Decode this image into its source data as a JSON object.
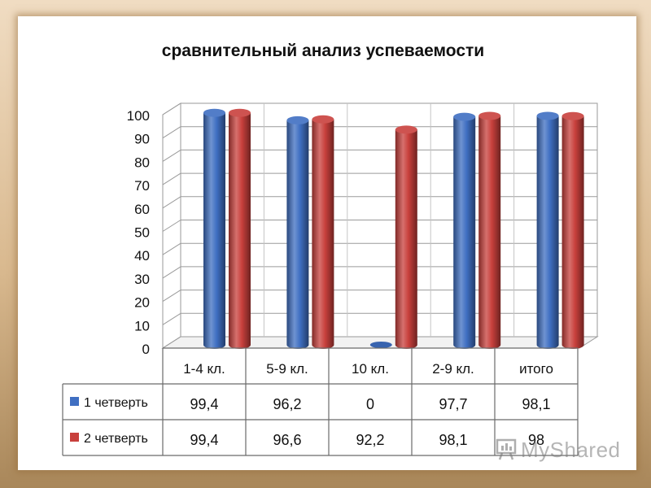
{
  "chart_data": {
    "type": "bar",
    "title": "сравнительный анализ успеваемости",
    "categories": [
      "1-4 кл.",
      "5-9 кл.",
      "10 кл.",
      "2-9 кл.",
      "итого"
    ],
    "series": [
      {
        "name": "1 четверть",
        "color": "#3f6fc2",
        "values": [
          99.4,
          96.2,
          0,
          97.7,
          98.1
        ],
        "labels": [
          "99,4",
          "96,2",
          "0",
          "97,7",
          "98,1"
        ]
      },
      {
        "name": "2 четверть",
        "color": "#c8403c",
        "values": [
          99.4,
          96.6,
          92.2,
          98.1,
          98
        ],
        "labels": [
          "99,4",
          "96,6",
          "92,2",
          "98,1",
          "98"
        ]
      }
    ],
    "ylim": [
      0,
      100
    ],
    "yticks": [
      0,
      10,
      20,
      30,
      40,
      50,
      60,
      70,
      80,
      90,
      100
    ],
    "grid": true,
    "legend": "data-table"
  },
  "watermark": {
    "text": "MyShared",
    "icon": "presentation-board-icon"
  }
}
